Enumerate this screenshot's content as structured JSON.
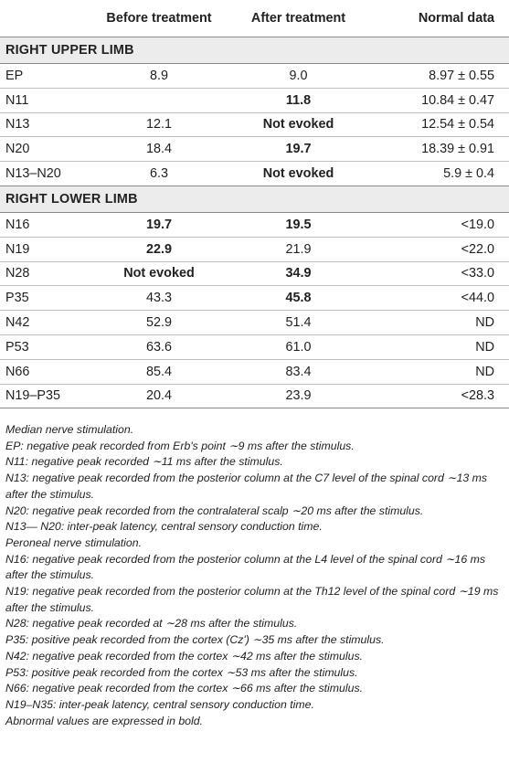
{
  "header": {
    "col_blank": "",
    "col_before": "Before treatment",
    "col_after": "After treatment",
    "col_normal": "Normal data"
  },
  "upper": {
    "title": "RIGHT UPPER LIMB",
    "rows": [
      {
        "label": "EP",
        "before": "8.9",
        "after": "9.0",
        "normal": "8.97 ± 0.55"
      },
      {
        "label": "N11",
        "before": "",
        "after": "11.8",
        "normal": "10.84 ± 0.47"
      },
      {
        "label": "N13",
        "before": "12.1",
        "after": "Not evoked",
        "normal": "12.54 ± 0.54"
      },
      {
        "label": "N20",
        "before": "18.4",
        "after": "19.7",
        "normal": "18.39 ± 0.91"
      },
      {
        "label": "N13–N20",
        "before": "6.3",
        "after": "Not evoked",
        "normal": "5.9 ± 0.4"
      }
    ]
  },
  "lower": {
    "title": "RIGHT LOWER LIMB",
    "rows": [
      {
        "label": "N16",
        "before": "19.7",
        "after": "19.5",
        "normal": "<19.0"
      },
      {
        "label": "N19",
        "before": "22.9",
        "after": "21.9",
        "normal": "<22.0"
      },
      {
        "label": "N28",
        "before": "Not evoked",
        "after": "34.9",
        "normal": "<33.0"
      },
      {
        "label": "P35",
        "before": "43.3",
        "after": "45.8",
        "normal": "<44.0"
      },
      {
        "label": "N42",
        "before": "52.9",
        "after": "51.4",
        "normal": "ND"
      },
      {
        "label": "P53",
        "before": "63.6",
        "after": "61.0",
        "normal": "ND"
      },
      {
        "label": "N66",
        "before": "85.4",
        "after": "83.4",
        "normal": "ND"
      },
      {
        "label": "N19–P35",
        "before": "20.4",
        "after": "23.9",
        "normal": "<28.3"
      }
    ]
  },
  "notes": [
    "Median nerve stimulation.",
    "EP: negative peak recorded from Erb's point ∼9 ms after the stimulus.",
    "N11: negative peak recorded ∼11 ms after the stimulus.",
    "N13: negative peak recorded from the posterior column at the C7 level of the spinal cord ∼13 ms after the stimulus.",
    "N20: negative peak recorded from the contralateral scalp ∼20 ms after the stimulus.",
    "N13— N20: inter-peak latency, central sensory conduction time.",
    "Peroneal nerve stimulation.",
    "N16: negative peak recorded from the posterior column at the L4 level of the spinal cord ∼16 ms after the stimulus.",
    "N19: negative peak recorded from the posterior column at the Th12 level of the spinal cord ∼19 ms after the stimulus.",
    "N28: negative peak recorded at ∼28 ms after the stimulus.",
    "P35: positive peak recorded from the cortex (Cz') ∼35 ms after the stimulus.",
    "N42: negative peak recorded from the cortex ∼42 ms after the stimulus.",
    "P53: positive peak recorded from the cortex ∼53 ms after the stimulus.",
    "N66: negative peak recorded from the cortex ∼66 ms after the stimulus.",
    "N19–N35: inter-peak latency, central sensory conduction time.",
    "Abnormal values are expressed in bold."
  ]
}
